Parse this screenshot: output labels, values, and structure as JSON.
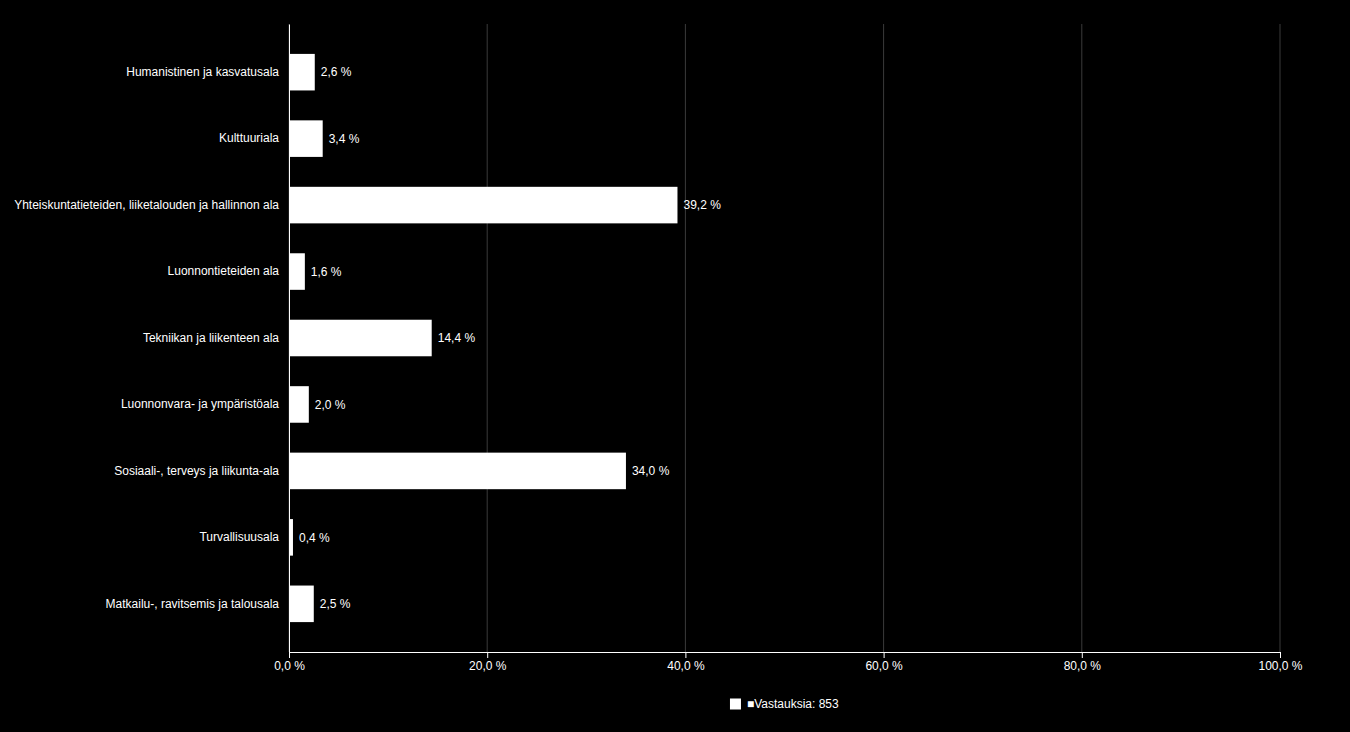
{
  "chart_data": {
    "type": "bar",
    "orientation": "horizontal",
    "categories": [
      "Humanistinen ja kasvatusala",
      "Kulttuuriala",
      "Yhteiskuntatieteiden, liiketalouden ja hallinnon ala",
      "Luonnontieteiden ala",
      "Tekniikan ja liikenteen ala",
      "Luonnonvara- ja ympäristöala",
      "Sosiaali-, terveys ja liikunta-ala",
      "Turvallisuusala",
      "Matkailu-, ravitsemis ja talousala"
    ],
    "series": [
      {
        "name": "■Vastauksia: 853",
        "color": "#ffffff",
        "values": [
          2.6,
          3.4,
          39.2,
          1.6,
          14.4,
          2.0,
          34.0,
          0.4,
          2.5
        ],
        "value_labels": [
          "2,6 %",
          "3,4 %",
          "39,2 %",
          "1,6 %",
          "14,4 %",
          "2,0 %",
          "34,0 %",
          "0,4 %",
          "2,5 %"
        ]
      }
    ],
    "xlim": [
      0,
      100
    ],
    "xticks": [
      {
        "value": 0,
        "label": "0,0 %"
      },
      {
        "value": 20,
        "label": "20,0 %"
      },
      {
        "value": 40,
        "label": "40,0 %"
      },
      {
        "value": 60,
        "label": "60,0 %"
      },
      {
        "value": 80,
        "label": "80,0 %"
      },
      {
        "value": 100,
        "label": "100,0 %"
      }
    ],
    "grid": true,
    "data_labels": true,
    "legend": "bottom"
  }
}
